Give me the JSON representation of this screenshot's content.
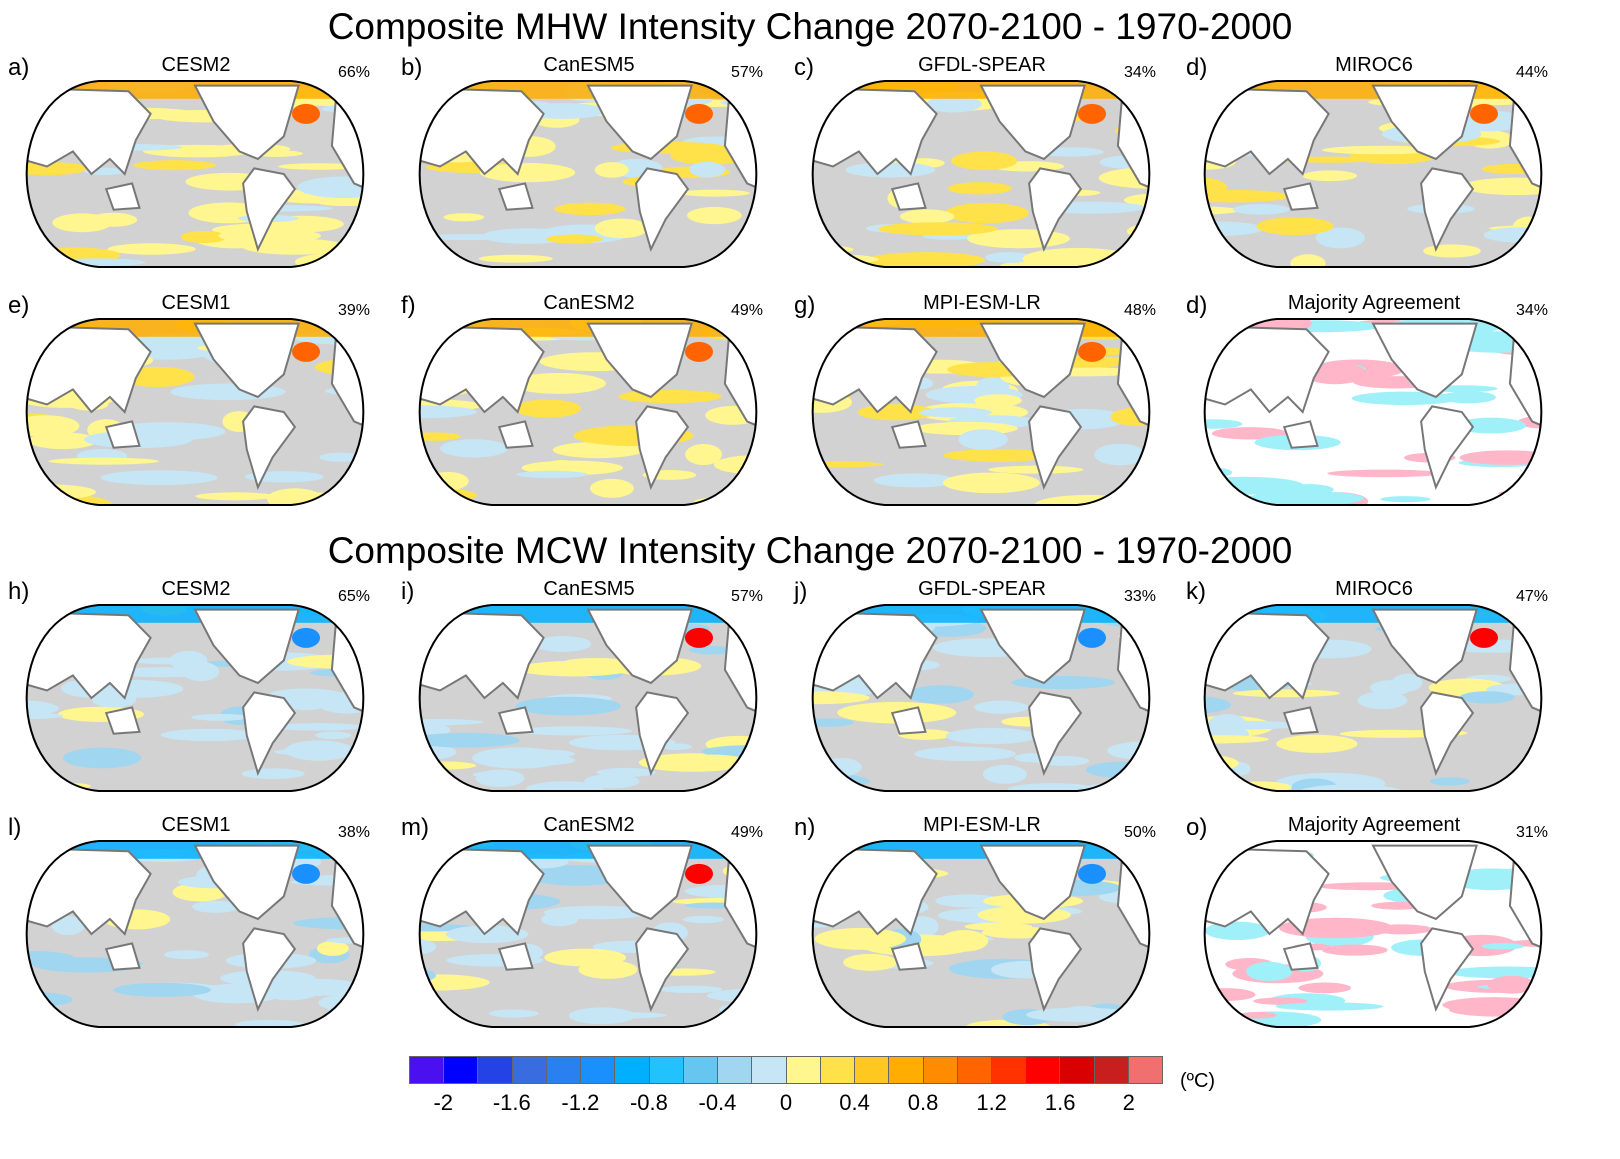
{
  "titles": {
    "mhw": "Composite MHW Intensity Change 2070-2100 - 1970-2000",
    "mcw": "Composite MCW Intensity Change 2070-2100 - 1970-2000"
  },
  "panels": [
    {
      "label": "a)",
      "name": "CESM2",
      "pct": "66%",
      "type": "model",
      "bias": "warm"
    },
    {
      "label": "b)",
      "name": "CanESM5",
      "pct": "57%",
      "type": "model",
      "bias": "warm"
    },
    {
      "label": "c)",
      "name": "GFDL-SPEAR",
      "pct": "34%",
      "type": "model",
      "bias": "warm"
    },
    {
      "label": "d)",
      "name": "MIROC6",
      "pct": "44%",
      "type": "model",
      "bias": "warm"
    },
    {
      "label": "e)",
      "name": "CESM1",
      "pct": "39%",
      "type": "model",
      "bias": "warm"
    },
    {
      "label": "f)",
      "name": "CanESM2",
      "pct": "49%",
      "type": "model",
      "bias": "warm"
    },
    {
      "label": "g)",
      "name": "MPI-ESM-LR",
      "pct": "48%",
      "type": "model",
      "bias": "warm"
    },
    {
      "label": "d)",
      "name": "Majority Agreement",
      "pct": "34%",
      "type": "agreement",
      "bias": "warm"
    },
    {
      "label": "h)",
      "name": "CESM2",
      "pct": "65%",
      "type": "model",
      "bias": "cold"
    },
    {
      "label": "i)",
      "name": "CanESM5",
      "pct": "57%",
      "type": "model",
      "bias": "cold"
    },
    {
      "label": "j)",
      "name": "GFDL-SPEAR",
      "pct": "33%",
      "type": "model",
      "bias": "cold"
    },
    {
      "label": "k)",
      "name": "MIROC6",
      "pct": "47%",
      "type": "model",
      "bias": "cold"
    },
    {
      "label": "l)",
      "name": "CESM1",
      "pct": "38%",
      "type": "model",
      "bias": "cold"
    },
    {
      "label": "m)",
      "name": "CanESM2",
      "pct": "49%",
      "type": "model",
      "bias": "cold"
    },
    {
      "label": "n)",
      "name": "MPI-ESM-LR",
      "pct": "50%",
      "type": "model",
      "bias": "cold"
    },
    {
      "label": "o)",
      "name": "Majority Agreement",
      "pct": "31%",
      "type": "agreement",
      "bias": "cold"
    }
  ],
  "colorbar": {
    "colors": [
      "#4b10f0",
      "#0000ff",
      "#2443e6",
      "#3b6be0",
      "#2a80f0",
      "#1a90ff",
      "#00b0ff",
      "#22c2ff",
      "#66c6f0",
      "#a0d6f0",
      "#c6e6f6",
      "#fff68f",
      "#ffe14a",
      "#ffc820",
      "#ffae00",
      "#ff8c00",
      "#ff6400",
      "#ff3200",
      "#ff0000",
      "#d80000",
      "#c81e1e",
      "#f07070"
    ],
    "ticks": [
      "-2",
      "-1.6",
      "-1.2",
      "-0.8",
      "-0.4",
      "0",
      "0.4",
      "0.8",
      "1.2",
      "1.6",
      "2"
    ],
    "unit": "(ºC)"
  },
  "style": {
    "ocean": "#d2d2d2",
    "coast": "#777777",
    "pink": "#ffb6c8",
    "cyan": "#a0f0fa"
  }
}
